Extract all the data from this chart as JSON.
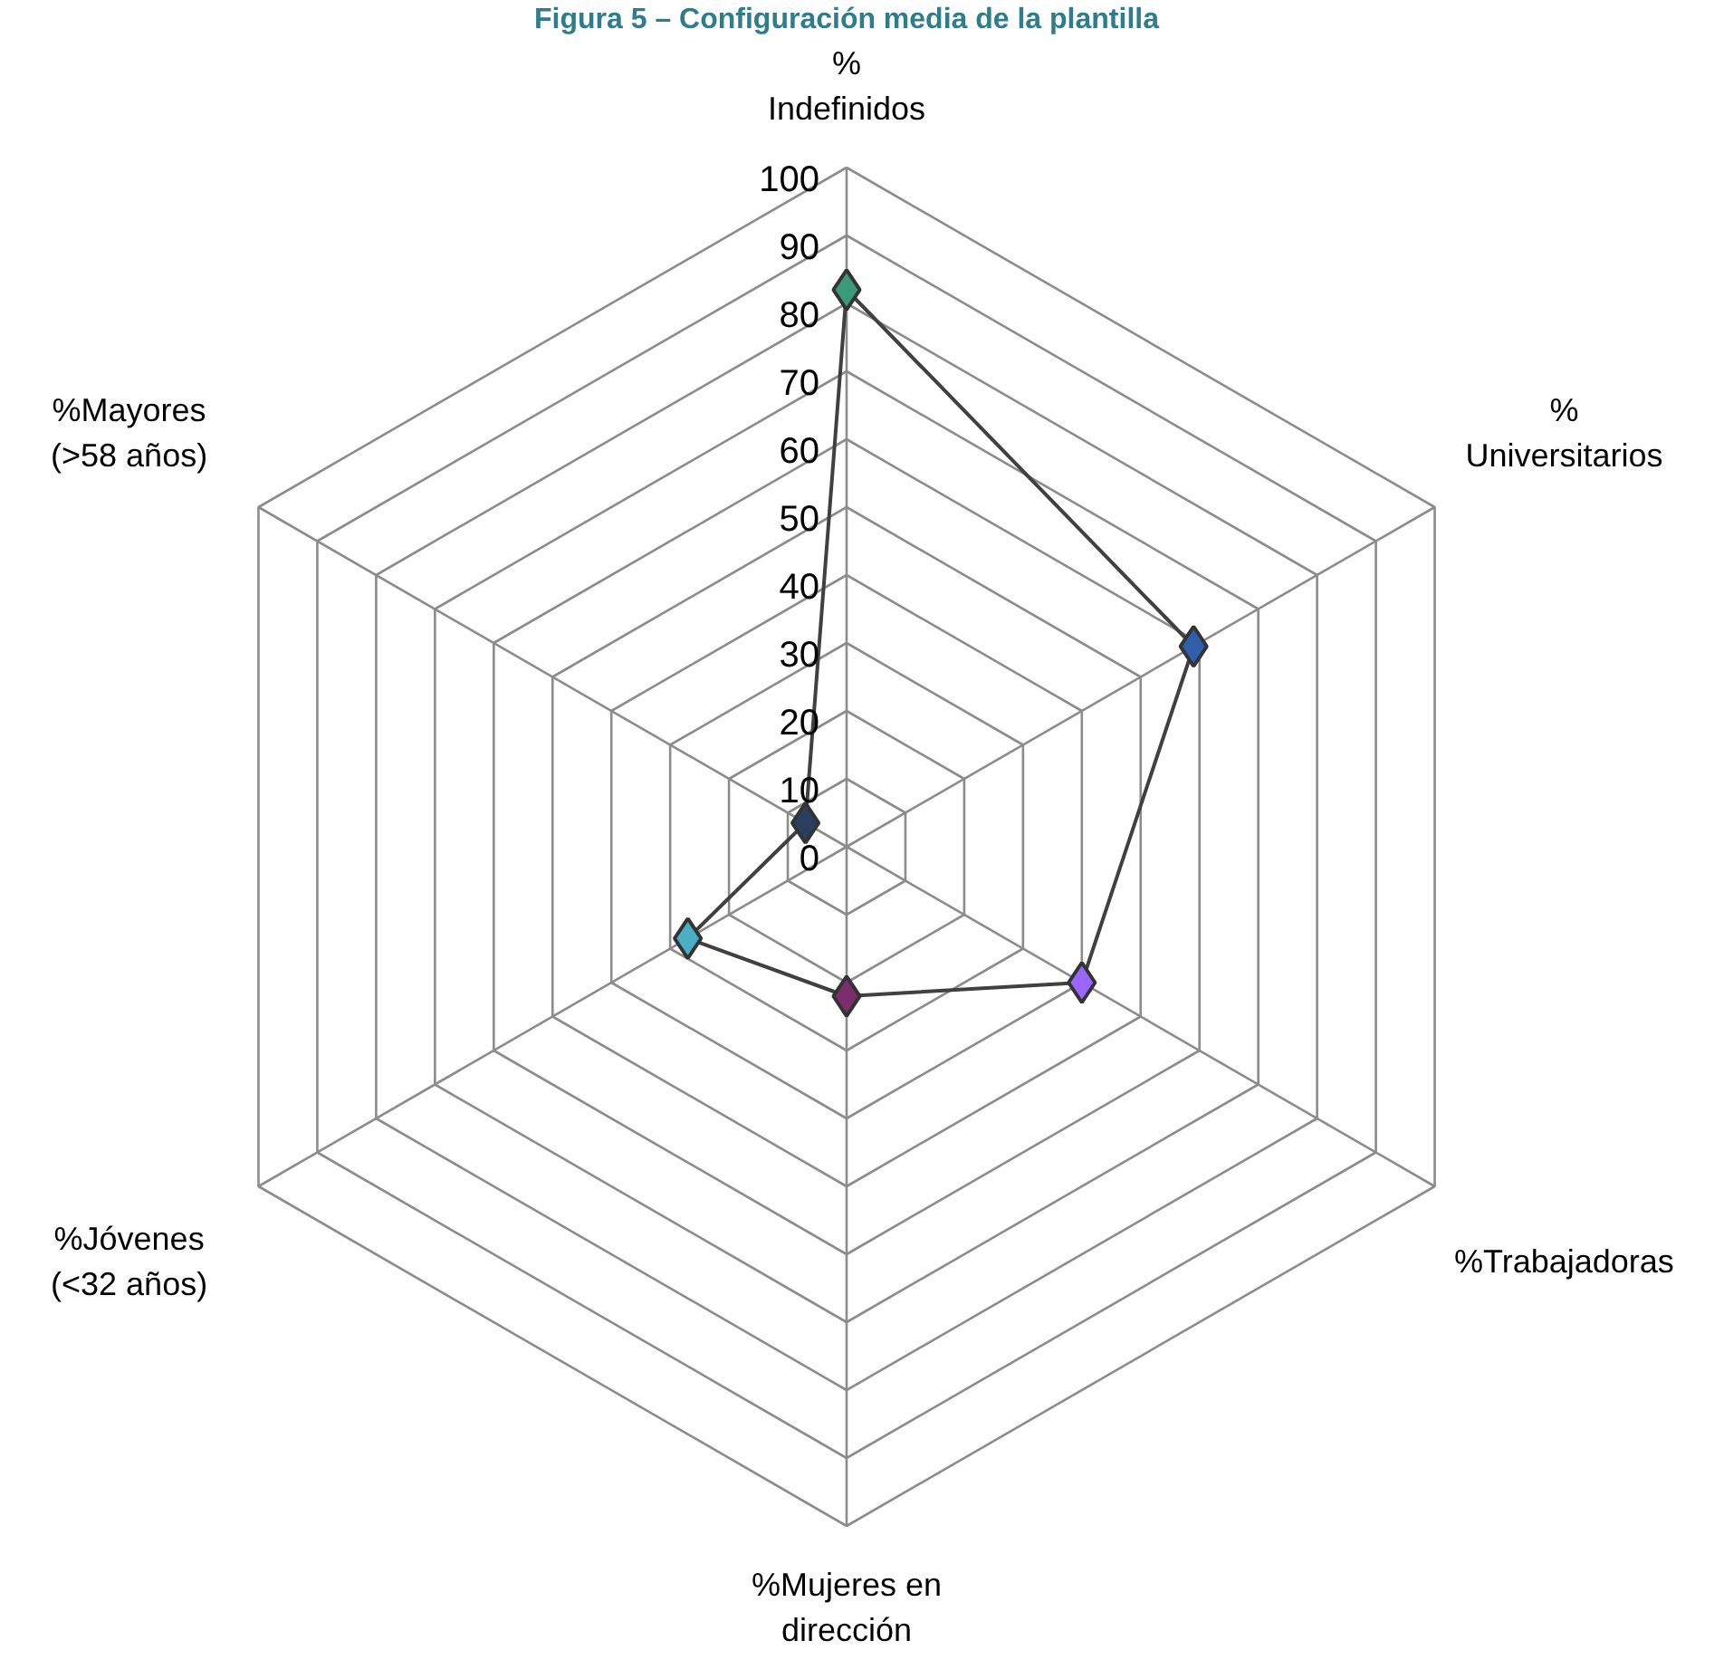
{
  "chart_data": {
    "type": "radar",
    "title": "Figura 5 – Configuración media de la plantilla",
    "categories": [
      "% Indefinidos",
      "% Universitarios",
      "%Trabajadoras",
      "%Mujeres en dirección",
      "%Jóvenes (<32 años)",
      "%Mayores (>58 años)"
    ],
    "series": [
      {
        "color": "#404040",
        "values": [
          82,
          59,
          40,
          22,
          27,
          7
        ]
      }
    ],
    "colors": [
      "#3a9a7a",
      "#2e5fa8",
      "#9966ff",
      "#7b2d6e",
      "#4aaec4",
      "#2a3f5f"
    ],
    "ylim": [
      0,
      100
    ],
    "yticks": [
      0,
      10,
      20,
      30,
      40,
      50,
      60,
      70,
      80,
      90,
      100
    ],
    "marker": "diamond",
    "grid": true
  }
}
